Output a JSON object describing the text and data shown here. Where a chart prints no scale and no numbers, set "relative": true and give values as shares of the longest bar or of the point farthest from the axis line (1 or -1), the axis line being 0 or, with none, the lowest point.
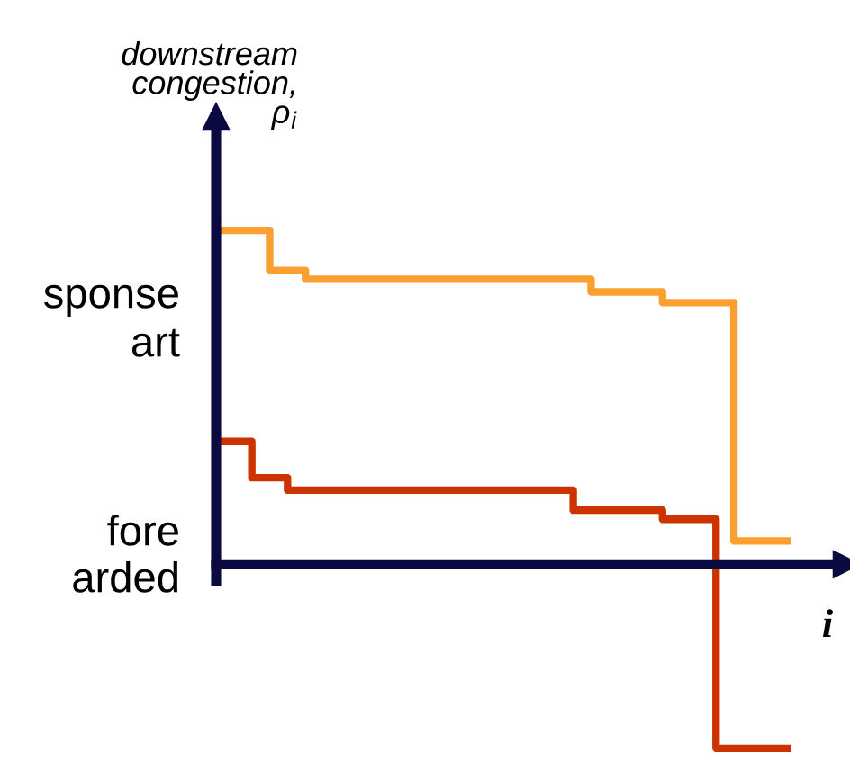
{
  "chart_data": {
    "type": "step",
    "relative": true,
    "xlabel": "i",
    "ylabel": "downstream\ncongestion,\nρ$_{i}$",
    "categories": [
      null,
      null,
      null,
      null,
      null,
      null,
      null,
      null,
      null,
      null,
      null,
      null,
      null,
      null,
      null,
      null,
      null,
      null,
      null,
      null,
      null,
      null,
      null,
      null,
      null,
      null,
      null,
      null,
      null,
      null,
      null,
      null,
      null
    ],
    "series": [
      {
        "color": "#f9a030",
        "values": [
          1.0,
          1.0,
          1.0,
          0.88,
          0.88,
          0.854,
          0.854,
          0.854,
          0.854,
          0.854,
          0.854,
          0.854,
          0.854,
          0.854,
          0.854,
          0.854,
          0.854,
          0.854,
          0.854,
          0.854,
          0.854,
          0.816,
          0.816,
          0.816,
          0.816,
          0.784,
          0.784,
          0.784,
          0.784,
          0.07,
          0.07,
          0.07,
          0.07
        ]
      },
      {
        "color": "#cc3300",
        "values": [
          0.368,
          0.368,
          0.259,
          0.259,
          0.222,
          0.222,
          0.222,
          0.222,
          0.222,
          0.222,
          0.222,
          0.222,
          0.222,
          0.222,
          0.222,
          0.222,
          0.222,
          0.222,
          0.222,
          0.222,
          0.162,
          0.162,
          0.162,
          0.162,
          0.162,
          0.135,
          0.135,
          0.135,
          -0.551,
          -0.551,
          -0.551,
          -0.551,
          -0.551
        ]
      }
    ],
    "annotations": [
      "sponse",
      "art",
      "fore",
      "arded"
    ],
    "legend": false
  }
}
